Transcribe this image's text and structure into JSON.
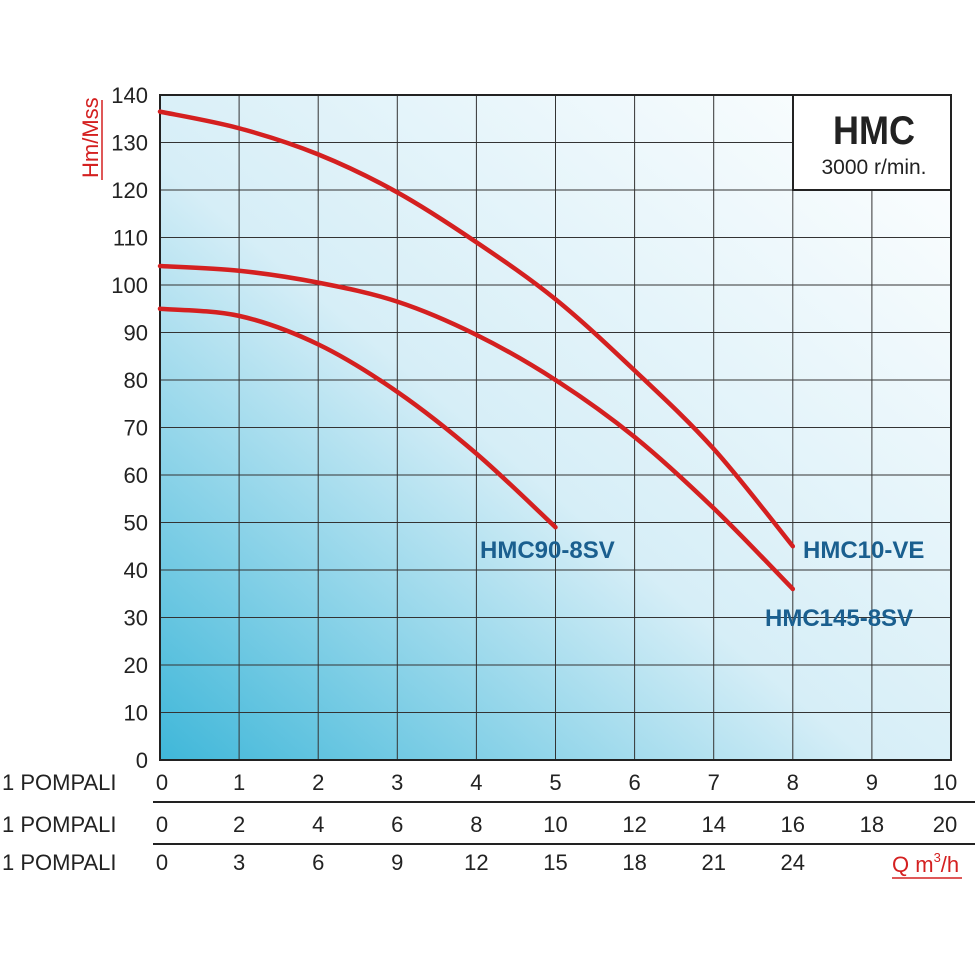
{
  "chart_data": {
    "type": "line",
    "title": "HMC",
    "subtitle": "3000 r/min.",
    "ylabel": "Hm/Mss",
    "xlabel": "Q m3/h",
    "xlabel_parts": {
      "main": "Q m",
      "sup": "3",
      "tail": "/h"
    },
    "ylim": [
      0,
      140
    ],
    "xlim": [
      0,
      10
    ],
    "yticks": [
      0,
      10,
      20,
      30,
      40,
      50,
      60,
      70,
      80,
      90,
      100,
      110,
      120,
      130,
      140
    ],
    "grid": true,
    "x_scales": [
      {
        "label": "1 POMPALI",
        "ticks": [
          "0",
          "1",
          "2",
          "3",
          "4",
          "5",
          "6",
          "7",
          "8",
          "9",
          "10"
        ]
      },
      {
        "label": "1 POMPALI",
        "ticks": [
          "0",
          "2",
          "4",
          "6",
          "8",
          "10",
          "12",
          "14",
          "16",
          "18",
          "20"
        ]
      },
      {
        "label": "1 POMPALI",
        "ticks": [
          "0",
          "3",
          "6",
          "9",
          "12",
          "15",
          "18",
          "21",
          "24"
        ]
      }
    ],
    "series": [
      {
        "name": "HMC10-VE",
        "x": [
          0,
          1,
          2,
          3,
          4,
          5,
          6,
          7,
          8
        ],
        "y": [
          136.5,
          133,
          127.5,
          119.5,
          109,
          97,
          82,
          65.5,
          45
        ]
      },
      {
        "name": "HMC145-8SV",
        "x": [
          0,
          1,
          2,
          3,
          4,
          5,
          6,
          7,
          8
        ],
        "y": [
          104,
          103,
          100.5,
          96.5,
          89.5,
          80,
          68,
          53,
          36
        ]
      },
      {
        "name": "HMC90-8SV",
        "x": [
          0,
          1,
          2,
          3,
          4,
          5
        ],
        "y": [
          95,
          93.5,
          87.5,
          77.5,
          64.5,
          49
        ]
      }
    ],
    "colors": {
      "curve": "#d42020",
      "label": "#1a5f8f",
      "axis_title": "#d42020",
      "gradient_start": "#3fb7d9",
      "gradient_end": "#ffffff"
    }
  }
}
